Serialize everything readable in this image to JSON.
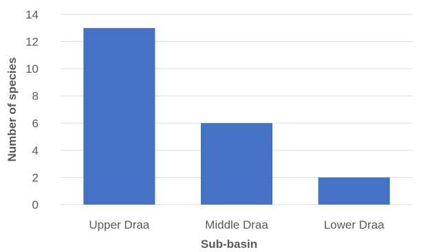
{
  "chart_data": {
    "type": "bar",
    "categories": [
      "Upper Draa",
      "Middle Draa",
      "Lower Draa"
    ],
    "values": [
      13,
      6,
      2
    ],
    "title": "",
    "xlabel": "Sub-basin",
    "ylabel": "Number of species",
    "ylim": [
      0,
      14
    ],
    "yticks": [
      0,
      2,
      4,
      6,
      8,
      10,
      12,
      14
    ],
    "grid": true,
    "legend": "none",
    "bar_color": "#4472c4"
  }
}
